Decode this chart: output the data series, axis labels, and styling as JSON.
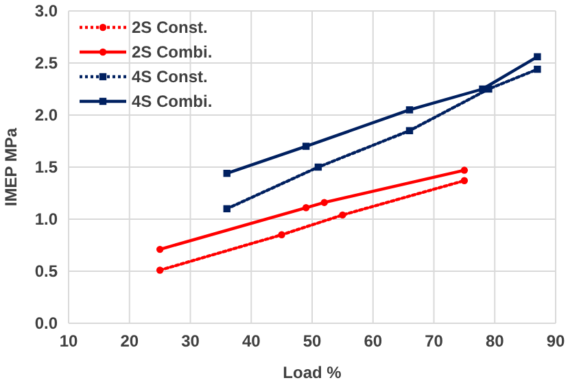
{
  "chart_data": {
    "type": "line",
    "xlabel": "Load %",
    "ylabel": "IMEP MPa",
    "xlim": [
      10,
      90
    ],
    "xticks": [
      10,
      20,
      30,
      40,
      50,
      60,
      70,
      80,
      90
    ],
    "ylim": [
      0,
      3
    ],
    "yticks": [
      {
        "value": 0,
        "label": "0.0"
      },
      {
        "value": 0.5,
        "label": "0.5"
      },
      {
        "value": 1,
        "label": "1.0"
      },
      {
        "value": 1.5,
        "label": "1.5"
      },
      {
        "value": 2,
        "label": "2.0"
      },
      {
        "value": 2.5,
        "label": "2.5"
      },
      {
        "value": 3,
        "label": "3.0"
      }
    ],
    "grid": true,
    "legend": "top left",
    "series": [
      {
        "name": "2S Const.",
        "color": "#ff0000",
        "line_style": "dotted",
        "marker": "circle",
        "x": [
          25,
          45,
          55,
          75
        ],
        "values": [
          0.51,
          0.85,
          1.04,
          1.37
        ]
      },
      {
        "name": "2S Combi.",
        "color": "#ff0000",
        "line_style": "solid",
        "marker": "circle",
        "x": [
          25,
          49,
          52,
          75
        ],
        "values": [
          0.71,
          1.11,
          1.16,
          1.47
        ]
      },
      {
        "name": "4S Const.",
        "color": "#002060",
        "line_style": "dotted",
        "marker": "square",
        "x": [
          36,
          51,
          66,
          79,
          87
        ],
        "values": [
          1.1,
          1.5,
          1.85,
          2.25,
          2.44
        ]
      },
      {
        "name": "4S Combi.",
        "color": "#002060",
        "line_style": "solid",
        "marker": "square",
        "x": [
          36,
          49,
          66,
          78,
          87
        ],
        "values": [
          1.44,
          1.7,
          2.05,
          2.25,
          2.56
        ]
      }
    ]
  }
}
